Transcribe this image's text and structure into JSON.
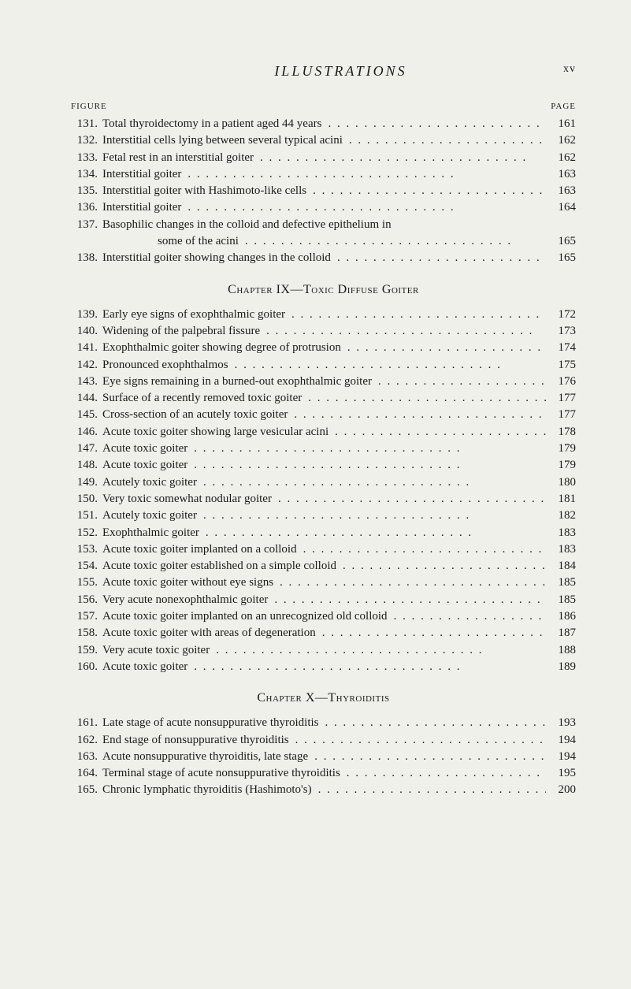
{
  "header": {
    "title": "ILLUSTRATIONS",
    "roman_page": "xv"
  },
  "column_headers": {
    "left": "FIGURE",
    "right": "PAGE"
  },
  "sections": [
    {
      "heading": null,
      "entries": [
        {
          "num": "131.",
          "text": "Total thyroidectomy in a patient aged 44 years",
          "page": "161"
        },
        {
          "num": "132.",
          "text": "Interstitial cells lying between several typical acini",
          "page": "162"
        },
        {
          "num": "133.",
          "text": "Fetal rest in an interstitial goiter",
          "page": "162"
        },
        {
          "num": "134.",
          "text": "Interstitial goiter",
          "page": "163"
        },
        {
          "num": "135.",
          "text": "Interstitial goiter with Hashimoto-like cells",
          "page": "163"
        },
        {
          "num": "136.",
          "text": "Interstitial goiter",
          "page": "164"
        },
        {
          "num": "137.",
          "text": "Basophilic changes in the colloid and defective epithelium in",
          "page": ""
        },
        {
          "num": "",
          "text": "some of the acini",
          "page": "165",
          "continuation": true
        },
        {
          "num": "138.",
          "text": "Interstitial goiter showing changes in the colloid",
          "page": "165"
        }
      ]
    },
    {
      "heading": "Chapter IX—Toxic Diffuse Goiter",
      "entries": [
        {
          "num": "139.",
          "text": "Early eye signs of exophthalmic goiter",
          "page": "172"
        },
        {
          "num": "140.",
          "text": "Widening of the palpebral fissure",
          "page": "173"
        },
        {
          "num": "141.",
          "text": "Exophthalmic goiter showing degree of protrusion",
          "page": "174"
        },
        {
          "num": "142.",
          "text": "Pronounced exophthalmos",
          "page": "175"
        },
        {
          "num": "143.",
          "text": "Eye signs remaining in a burned-out exophthalmic goiter",
          "page": "176"
        },
        {
          "num": "144.",
          "text": "Surface of a recently removed toxic goiter",
          "page": "177"
        },
        {
          "num": "145.",
          "text": "Cross-section of an acutely toxic goiter",
          "page": "177"
        },
        {
          "num": "146.",
          "text": "Acute toxic goiter showing large vesicular acini",
          "page": "178"
        },
        {
          "num": "147.",
          "text": "Acute toxic goiter",
          "page": "179"
        },
        {
          "num": "148.",
          "text": "Acute toxic goiter",
          "page": "179"
        },
        {
          "num": "149.",
          "text": "Acutely toxic goiter",
          "page": "180"
        },
        {
          "num": "150.",
          "text": "Very toxic somewhat nodular goiter",
          "page": "181"
        },
        {
          "num": "151.",
          "text": "Acutely toxic goiter",
          "page": "182"
        },
        {
          "num": "152.",
          "text": "Exophthalmic goiter",
          "page": "183"
        },
        {
          "num": "153.",
          "text": "Acute toxic goiter implanted on a colloid",
          "page": "183"
        },
        {
          "num": "154.",
          "text": "Acute toxic goiter established on a simple colloid",
          "page": "184"
        },
        {
          "num": "155.",
          "text": "Acute toxic goiter without eye signs",
          "page": "185"
        },
        {
          "num": "156.",
          "text": "Very acute nonexophthalmic goiter",
          "page": "185"
        },
        {
          "num": "157.",
          "text": "Acute toxic goiter implanted on an unrecognized old colloid",
          "page": "186"
        },
        {
          "num": "158.",
          "text": "Acute toxic goiter with areas of degeneration",
          "page": "187"
        },
        {
          "num": "159.",
          "text": "Very acute toxic goiter",
          "page": "188"
        },
        {
          "num": "160.",
          "text": "Acute toxic goiter",
          "page": "189"
        }
      ]
    },
    {
      "heading": "Chapter X—Thyroiditis",
      "entries": [
        {
          "num": "161.",
          "text": "Late stage of acute nonsuppurative thyroiditis",
          "page": "193"
        },
        {
          "num": "162.",
          "text": "End stage of nonsuppurative thyroiditis",
          "page": "194"
        },
        {
          "num": "163.",
          "text": "Acute nonsuppurative thyroiditis, late stage",
          "page": "194"
        },
        {
          "num": "164.",
          "text": "Terminal stage of acute nonsuppurative thyroiditis",
          "page": "195"
        },
        {
          "num": "165.",
          "text": "Chronic lymphatic thyroiditis (Hashimoto's)",
          "page": "200"
        }
      ]
    }
  ]
}
